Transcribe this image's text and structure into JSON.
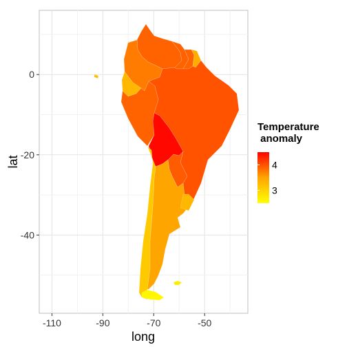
{
  "chart_data": {
    "type": "choropleth",
    "xlabel": "long",
    "ylabel": "lat",
    "xlim": [
      -115,
      -33
    ],
    "ylim": [
      -59.5,
      16
    ],
    "x_ticks": [
      -110,
      -90,
      -70,
      -50
    ],
    "y_ticks": [
      0,
      -20,
      -40
    ],
    "x_tick_labels": [
      "-110",
      "-90",
      "-70",
      "-50"
    ],
    "y_tick_labels": [
      "0",
      "-20",
      "-40"
    ],
    "grid": true,
    "legend": {
      "title_line1": "Temperature",
      "title_line2": " anomaly",
      "placement": "right",
      "range": [
        2.5,
        4.5
      ],
      "tick_values": [
        4,
        3
      ],
      "tick_labels": [
        "4",
        "3"
      ],
      "color_low": "#ffff00",
      "color_mid": "#ffa500",
      "color_high": "#ff0000"
    },
    "regions": [
      {
        "name": "Venezuela",
        "value": 3.9
      },
      {
        "name": "Colombia",
        "value": 3.75
      },
      {
        "name": "Guyana",
        "value": 3.9
      },
      {
        "name": "Suriname",
        "value": 3.9
      },
      {
        "name": "French Guiana",
        "value": 3.4
      },
      {
        "name": "Ecuador",
        "value": 3.3
      },
      {
        "name": "Galapagos",
        "value": 3.2
      },
      {
        "name": "Peru",
        "value": 3.9
      },
      {
        "name": "Brazil",
        "value": 4.0
      },
      {
        "name": "Bolivia",
        "value": 4.45
      },
      {
        "name": "Paraguay",
        "value": 3.95
      },
      {
        "name": "Chile",
        "value": 3.1
      },
      {
        "name": "Argentina",
        "value": 3.5
      },
      {
        "name": "Uruguay",
        "value": 3.3
      },
      {
        "name": "Falklands",
        "value": 2.7
      },
      {
        "name": "Tierra del Fuego",
        "value": 2.6
      }
    ]
  }
}
